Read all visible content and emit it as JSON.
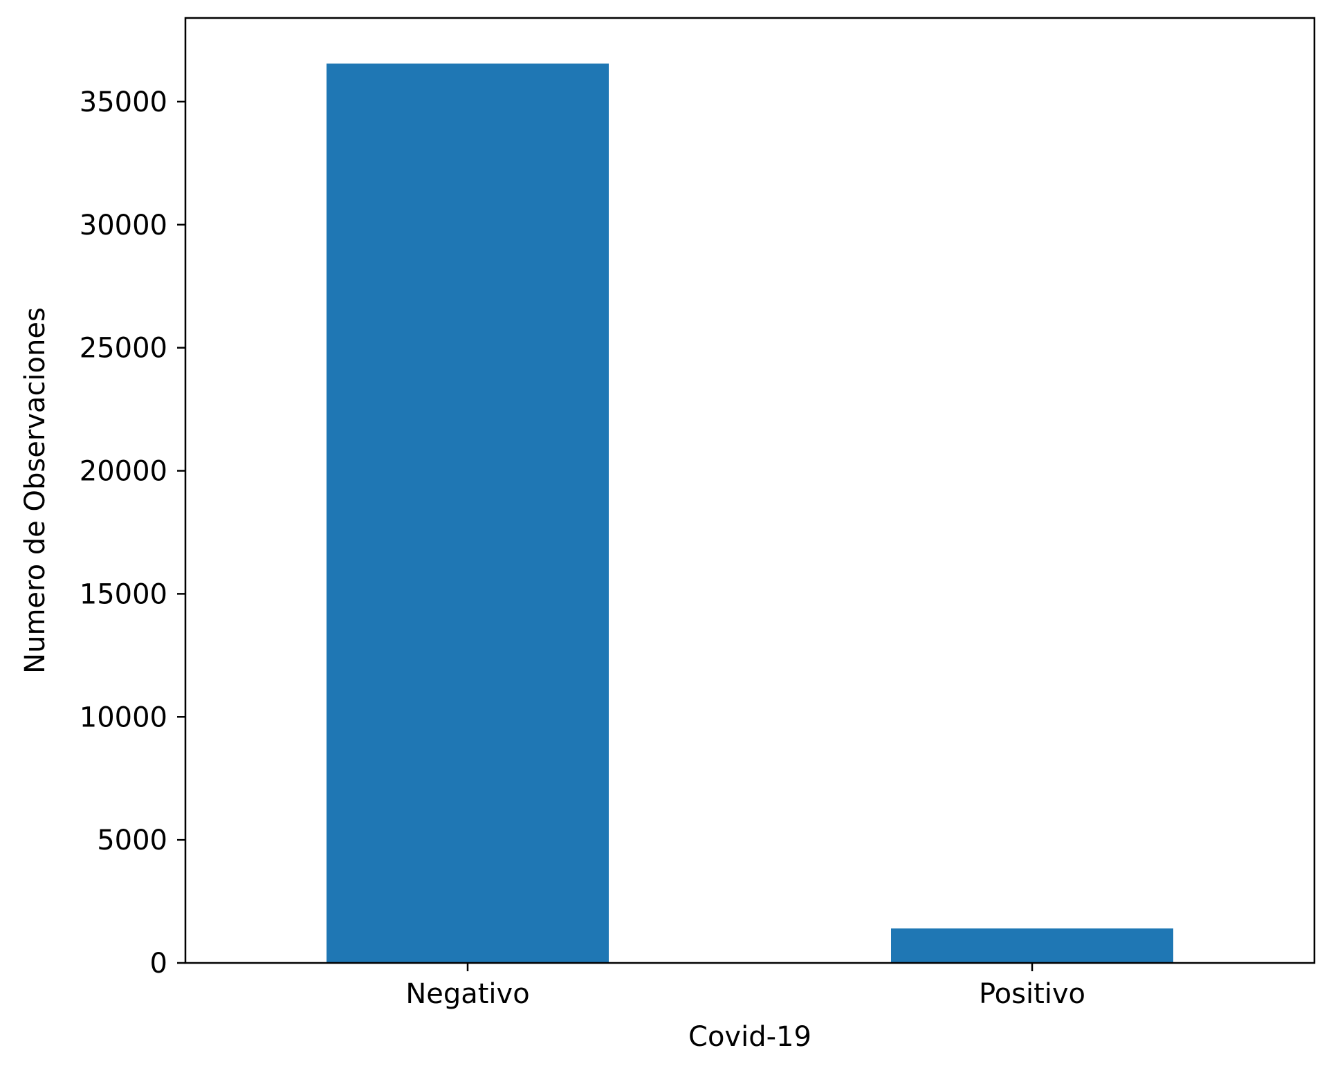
{
  "chart_data": {
    "type": "bar",
    "title": "",
    "xlabel": "Covid-19",
    "ylabel": "Numero de Observaciones",
    "categories": [
      "Negativo",
      "Positivo"
    ],
    "values": [
      36550,
      1400
    ],
    "ylim": [
      0,
      38400
    ],
    "yticks": [
      0,
      5000,
      10000,
      15000,
      20000,
      25000,
      30000,
      35000
    ],
    "ytick_labels": [
      "0",
      "5000",
      "10000",
      "15000",
      "20000",
      "25000",
      "30000",
      "35000"
    ],
    "bar_color": "#1f77b4",
    "grid": false,
    "legend": "none"
  }
}
